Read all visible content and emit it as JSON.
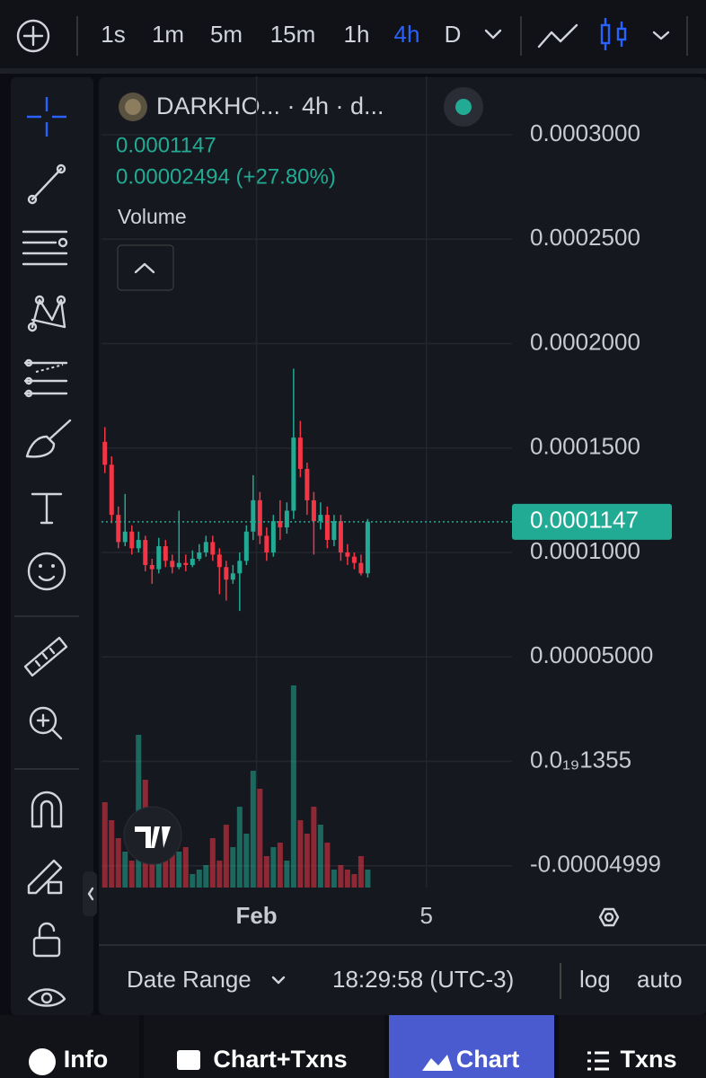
{
  "toolbar": {
    "intervals": [
      "1s",
      "1m",
      "5m",
      "15m",
      "1h",
      "4h",
      "D"
    ],
    "active": "4h"
  },
  "legend": {
    "symbol": "DARKHO... · 4h · d...",
    "price": "0.0001147",
    "change": "0.00002494 (+27.80%)",
    "volume_label": "Volume"
  },
  "chart_data": {
    "type": "candlestick",
    "open": [
      0.000153,
      0.000142,
      0.000118,
      0.000105,
      0.00011,
      0.000102,
      0.000106,
      9.4e-05,
      9.2e-05,
      0.000103,
      9.6e-05,
      9.3e-05,
      9.5e-05,
      9.4e-05,
      9.7e-05,
      0.0001,
      0.000105,
      9.9e-05,
      9.3e-05,
      8.7e-05,
      9e-05,
      9.6e-05,
      0.00011,
      0.000125,
      0.000108,
      0.0001,
      0.000115,
      0.000112,
      0.00012,
      0.000155,
      0.00014,
      0.000125,
      0.000115,
      0.000118,
      0.000106,
      0.000115,
      0.0001,
      9.8e-05,
      9.5e-05,
      9e-05
    ],
    "high": [
      0.00016,
      0.000146,
      0.000122,
      0.000128,
      0.000113,
      0.00011,
      0.000108,
      9.7e-05,
      0.000107,
      0.000106,
      9.9e-05,
      0.00012,
      9.9e-05,
      0.000101,
      0.000104,
      0.000108,
      0.000108,
      0.000102,
      9.6e-05,
      9.4e-05,
      0.0001,
      0.000113,
      0.000137,
      0.000129,
      0.000112,
      0.000118,
      0.000125,
      0.000124,
      0.000188,
      0.000163,
      0.000143,
      0.000129,
      0.000124,
      0.000122,
      0.000118,
      0.000118,
      0.000104,
      0.0001,
      9.9e-05,
      0.000116
    ],
    "low": [
      0.000138,
      0.000114,
      0.000102,
      0.000103,
      9.9e-05,
      0.0001,
      9.1e-05,
      8.5e-05,
      9e-05,
      9.3e-05,
      9e-05,
      9.2e-05,
      9.1e-05,
      9.3e-05,
      9.6e-05,
      9.8e-05,
      9.6e-05,
      8e-05,
      7.7e-05,
      8.5e-05,
      7.2e-05,
      9.4e-05,
      0.000106,
      0.000104,
      9.6e-05,
      9.8e-05,
      0.000106,
      0.000109,
      0.000116,
      0.000136,
      0.000118,
      9.9e-05,
      0.000111,
      0.000102,
      0.000103,
      9.6e-05,
      9.4e-05,
      9.2e-05,
      8.9e-05,
      8.8e-05
    ],
    "close": [
      0.000142,
      0.000118,
      0.000105,
      0.00011,
      0.000102,
      0.000106,
      9.4e-05,
      9.2e-05,
      0.000103,
      9.6e-05,
      9.3e-05,
      9.5e-05,
      9.4e-05,
      9.7e-05,
      0.0001,
      0.000105,
      9.9e-05,
      9.3e-05,
      8.7e-05,
      9e-05,
      9.6e-05,
      0.00011,
      0.000125,
      0.000108,
      0.0001,
      0.000115,
      0.000112,
      0.00012,
      0.000155,
      0.00014,
      0.000125,
      0.000115,
      0.000118,
      0.000106,
      0.000115,
      0.0001,
      9.8e-05,
      9.5e-05,
      9e-05,
      0.0001147
    ],
    "volume": [
      95,
      75,
      55,
      40,
      30,
      170,
      120,
      60,
      45,
      30,
      50,
      40,
      45,
      15,
      20,
      25,
      55,
      30,
      70,
      45,
      90,
      60,
      130,
      110,
      35,
      45,
      50,
      30,
      225,
      75,
      60,
      90,
      70,
      50,
      20,
      25,
      20,
      15,
      35,
      20
    ],
    "up_color": "#22ab94",
    "down_color": "#f23645",
    "ylim": [
      -6.043e-05,
      0.00032796
    ],
    "yticks": [
      {
        "value": 0.0003,
        "label": "0.0003000"
      },
      {
        "value": 0.00025,
        "label": "0.0002500"
      },
      {
        "value": 0.0002,
        "label": "0.0002000"
      },
      {
        "value": 0.00015,
        "label": "0.0001500"
      },
      {
        "value": 0.0001,
        "label": "0.0001000"
      },
      {
        "value": 5e-05,
        "label": "0.00005000"
      },
      {
        "value": 1.355e-20,
        "label": "0.0₁₉1355"
      },
      {
        "value": -4.999e-05,
        "label": "-0.00004999"
      }
    ],
    "xlim": [
      -0.5,
      60.4
    ],
    "xticks": [
      {
        "value": 22.5,
        "label": "Feb"
      },
      {
        "value": 47.7,
        "label": "5"
      }
    ],
    "last_price": {
      "value": 0.0001147,
      "label": "0.0001147"
    },
    "grid": true
  },
  "bottom_bar": {
    "date_range": "Date Range",
    "time": "18:29:58 (UTC-3)",
    "log": "log",
    "auto": "auto"
  },
  "tabs": [
    "Info",
    "Chart+Txns",
    "Chart",
    "Txns"
  ],
  "active_tab": "Chart"
}
